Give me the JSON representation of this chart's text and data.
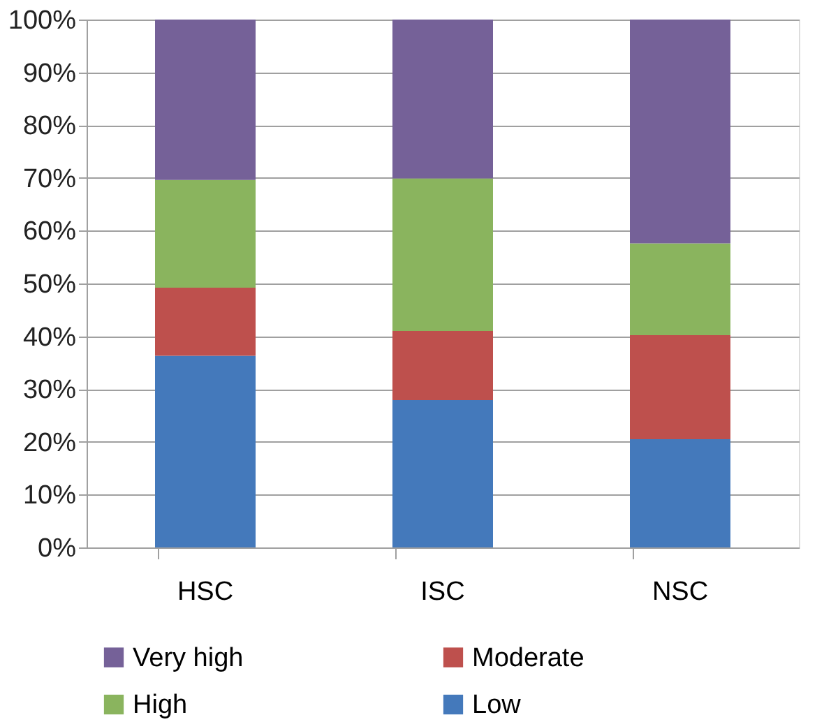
{
  "chart_data": {
    "type": "bar",
    "stacked": true,
    "categories": [
      "HSC",
      "ISC",
      "NSC"
    ],
    "series": [
      {
        "name": "Low",
        "color": "#4479bb",
        "values": [
          36.3,
          27.9,
          20.5
        ]
      },
      {
        "name": "Moderate",
        "color": "#be504d",
        "values": [
          12.9,
          13.1,
          19.7
        ]
      },
      {
        "name": "High",
        "color": "#8ab45e",
        "values": [
          20.4,
          28.9,
          17.4
        ]
      },
      {
        "name": "Very high",
        "color": "#756198",
        "values": [
          30.4,
          30.1,
          42.4
        ]
      }
    ],
    "ylim": [
      0,
      100
    ],
    "yticks": [
      {
        "value": 0,
        "label": "0%"
      },
      {
        "value": 10,
        "label": "10%"
      },
      {
        "value": 20,
        "label": "20%"
      },
      {
        "value": 30,
        "label": "30%"
      },
      {
        "value": 40,
        "label": "40%"
      },
      {
        "value": 50,
        "label": "50%"
      },
      {
        "value": 60,
        "label": "60%"
      },
      {
        "value": 70,
        "label": "70%"
      },
      {
        "value": 80,
        "label": "80%"
      },
      {
        "value": 90,
        "label": "90%"
      },
      {
        "value": 100,
        "label": "100%"
      }
    ],
    "grid": "y",
    "legend": "bottom"
  }
}
